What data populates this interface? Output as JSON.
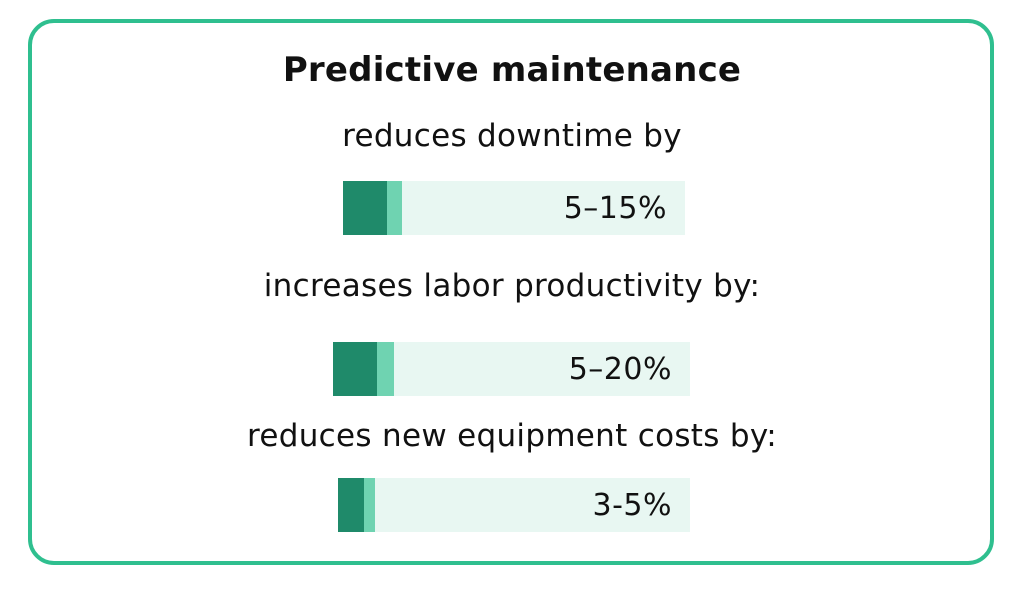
{
  "chart_data": {
    "type": "bar",
    "title": "Predictive maintenance",
    "categories": [
      "reduces downtime by",
      "increases labor productivity by:",
      "reduces new equipment costs by:"
    ],
    "value_labels": [
      "5–15%",
      "5–20%",
      "3-5%"
    ],
    "series": [
      {
        "values": [
          5,
          5,
          3
        ]
      },
      {
        "values": [
          15,
          20,
          5
        ]
      }
    ],
    "xlim": [
      0,
      100
    ],
    "colors": {
      "low": "#1f8a6a",
      "high": "#6fd3b1",
      "track": "#e8f7f2",
      "border": "#2fbf8f"
    }
  }
}
